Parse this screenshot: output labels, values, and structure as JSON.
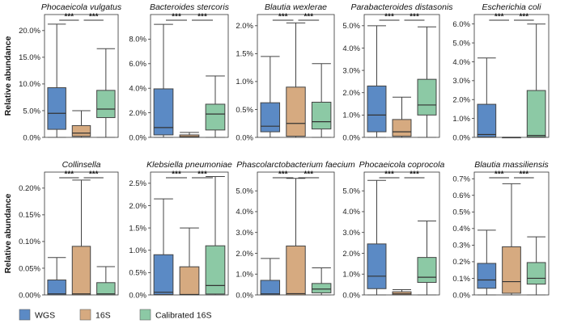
{
  "legend": [
    {
      "label": "WGS",
      "color": "#5b8ac5"
    },
    {
      "label": "16S",
      "color": "#d6aa80"
    },
    {
      "label": "Calibrated 16S",
      "color": "#8cc9a5"
    }
  ],
  "chart_data": [
    {
      "type": "box",
      "title": "Phocaeicola vulgatus",
      "ylabel": "Relative abundance",
      "unit": "%",
      "ylim": [
        0,
        23
      ],
      "ticks": [
        0,
        5,
        10,
        15,
        20
      ],
      "tick_labels": [
        "0.0%",
        "5.0%",
        "10.0%",
        "15.0%",
        "20.0%"
      ],
      "categories": [
        "WGS",
        "16S",
        "Calibrated 16S"
      ],
      "boxes": [
        {
          "min": 0,
          "q1": 1.5,
          "median": 4.5,
          "q3": 9.3,
          "max": 21.2
        },
        {
          "min": 0,
          "q1": 0.2,
          "median": 0.8,
          "q3": 2.2,
          "max": 5.0
        },
        {
          "min": 0,
          "q1": 3.7,
          "median": 5.3,
          "q3": 8.8,
          "max": 16.6
        }
      ],
      "significance": [
        "***",
        "***"
      ]
    },
    {
      "type": "box",
      "title": "Bacteroides stercoris",
      "ylabel": "",
      "unit": "%",
      "ylim": [
        0,
        10
      ],
      "ticks": [
        0,
        2,
        4,
        6,
        8
      ],
      "tick_labels": [
        "0.0%",
        "2.0%",
        "4.0%",
        "6.0%",
        "8.0%"
      ],
      "categories": [
        "WGS",
        "16S",
        "Calibrated 16S"
      ],
      "boxes": [
        {
          "min": 0,
          "q1": 0.2,
          "median": 0.8,
          "q3": 3.95,
          "max": 9.2
        },
        {
          "min": 0,
          "q1": 0,
          "median": 0.05,
          "q3": 0.2,
          "max": 0.4
        },
        {
          "min": 0,
          "q1": 0.6,
          "median": 1.9,
          "q3": 2.7,
          "max": 5.0
        }
      ],
      "significance": [
        "***",
        "***"
      ]
    },
    {
      "type": "box",
      "title": "Blautia wexlerae",
      "ylabel": "",
      "unit": "%",
      "ylim": [
        0,
        2.2
      ],
      "ticks": [
        0,
        0.5,
        1.0,
        1.5,
        2.0
      ],
      "tick_labels": [
        "0.0%",
        "0.5%",
        "1.0%",
        "1.5%",
        "2.0%"
      ],
      "categories": [
        "WGS",
        "16S",
        "Calibrated 16S"
      ],
      "boxes": [
        {
          "min": 0,
          "q1": 0.1,
          "median": 0.2,
          "q3": 0.62,
          "max": 1.45
        },
        {
          "min": 0,
          "q1": 0.02,
          "median": 0.25,
          "q3": 0.9,
          "max": 2.05
        },
        {
          "min": 0,
          "q1": 0.15,
          "median": 0.28,
          "q3": 0.63,
          "max": 1.32
        }
      ],
      "significance": [
        "***",
        "***"
      ]
    },
    {
      "type": "box",
      "title": "Parabacteroides distasonis",
      "ylabel": "",
      "unit": "%",
      "ylim": [
        0,
        5.5
      ],
      "ticks": [
        0,
        1,
        2,
        3,
        4,
        5
      ],
      "tick_labels": [
        "0.0%",
        "1.0%",
        "2.0%",
        "3.0%",
        "4.0%",
        "5.0%"
      ],
      "categories": [
        "WGS",
        "16S",
        "Calibrated 16S"
      ],
      "boxes": [
        {
          "min": 0,
          "q1": 0.25,
          "median": 1.0,
          "q3": 2.3,
          "max": 5.0
        },
        {
          "min": 0,
          "q1": 0.05,
          "median": 0.25,
          "q3": 0.8,
          "max": 1.8
        },
        {
          "min": 0,
          "q1": 1.0,
          "median": 1.45,
          "q3": 2.6,
          "max": 4.95
        }
      ],
      "significance": [
        "***",
        "***"
      ]
    },
    {
      "type": "box",
      "title": "Escherichia coli",
      "ylabel": "",
      "unit": "%",
      "ylim": [
        0,
        6.5
      ],
      "ticks": [
        0,
        1,
        2,
        3,
        4,
        5,
        6
      ],
      "tick_labels": [
        "0.0%",
        "1.0%",
        "2.0%",
        "3.0%",
        "4.0%",
        "5.0%",
        "6.0%"
      ],
      "categories": [
        "WGS",
        "16S",
        "Calibrated 16S"
      ],
      "boxes": [
        {
          "min": 0,
          "q1": 0.02,
          "median": 0.15,
          "q3": 1.75,
          "max": 4.2
        },
        {
          "min": 0,
          "q1": 0,
          "median": 0,
          "q3": 0,
          "max": 0
        },
        {
          "min": 0,
          "q1": 0.02,
          "median": 0.1,
          "q3": 2.48,
          "max": 6.0
        }
      ],
      "significance": [
        "***",
        "***"
      ]
    },
    {
      "type": "box",
      "title": "Collinsella",
      "ylabel": "Relative abundance",
      "unit": "%",
      "ylim": [
        0,
        0.23
      ],
      "ticks": [
        0,
        0.05,
        0.1,
        0.15,
        0.2
      ],
      "tick_labels": [
        "0.00%",
        "0.05%",
        "0.10%",
        "0.15%",
        "0.20%"
      ],
      "categories": [
        "WGS",
        "16S",
        "Calibrated 16S"
      ],
      "boxes": [
        {
          "min": 0,
          "q1": 0,
          "median": 0.002,
          "q3": 0.028,
          "max": 0.07
        },
        {
          "min": 0,
          "q1": 0,
          "median": 0.002,
          "q3": 0.091,
          "max": 0.215
        },
        {
          "min": 0,
          "q1": 0,
          "median": 0.002,
          "q3": 0.023,
          "max": 0.053
        }
      ],
      "significance": [
        "***",
        "***"
      ]
    },
    {
      "type": "box",
      "title": "Klebsiella pneumoniae",
      "ylabel": "",
      "unit": "%",
      "ylim": [
        0,
        2.75
      ],
      "ticks": [
        0,
        0.5,
        1.0,
        1.5,
        2.0,
        2.5
      ],
      "tick_labels": [
        "0.0%",
        "0.5%",
        "1.0%",
        "1.5%",
        "2.0%",
        "2.5%"
      ],
      "categories": [
        "WGS",
        "16S",
        "Calibrated 16S"
      ],
      "boxes": [
        {
          "min": 0,
          "q1": 0.01,
          "median": 0.06,
          "q3": 0.9,
          "max": 2.15
        },
        {
          "min": 0,
          "q1": 0,
          "median": 0.01,
          "q3": 0.63,
          "max": 1.5
        },
        {
          "min": 0,
          "q1": 0.02,
          "median": 0.21,
          "q3": 1.1,
          "max": 2.65
        }
      ],
      "significance": [
        "***",
        "***"
      ]
    },
    {
      "type": "box",
      "title": "Phascolarctobacterium faecium",
      "ylabel": "",
      "unit": "%",
      "ylim": [
        0,
        5.9
      ],
      "ticks": [
        0,
        1,
        2,
        3,
        4,
        5
      ],
      "tick_labels": [
        "0.0%",
        "1.0%",
        "2.0%",
        "3.0%",
        "4.0%",
        "5.0%"
      ],
      "categories": [
        "WGS",
        "16S",
        "Calibrated 16S"
      ],
      "boxes": [
        {
          "min": 0,
          "q1": 0,
          "median": 0.05,
          "q3": 0.7,
          "max": 1.75
        },
        {
          "min": 0,
          "q1": 0,
          "median": 0.06,
          "q3": 2.35,
          "max": 5.6
        },
        {
          "min": 0,
          "q1": 0.1,
          "median": 0.28,
          "q3": 0.55,
          "max": 1.3
        }
      ],
      "significance": [
        "***",
        "***"
      ]
    },
    {
      "type": "box",
      "title": "Phocaeicola coprocola",
      "ylabel": "",
      "unit": "%",
      "ylim": [
        0,
        5.9
      ],
      "ticks": [
        0,
        1,
        2,
        3,
        4,
        5
      ],
      "tick_labels": [
        "0.0%",
        "1.0%",
        "2.0%",
        "3.0%",
        "4.0%",
        "5.0%"
      ],
      "categories": [
        "WGS",
        "16S",
        "Calibrated 16S"
      ],
      "boxes": [
        {
          "min": 0,
          "q1": 0.3,
          "median": 0.9,
          "q3": 2.45,
          "max": 5.5
        },
        {
          "min": 0,
          "q1": 0,
          "median": 0.05,
          "q3": 0.15,
          "max": 0.25
        },
        {
          "min": 0,
          "q1": 0.6,
          "median": 0.85,
          "q3": 1.8,
          "max": 3.55
        }
      ],
      "significance": [
        "***",
        "***"
      ]
    },
    {
      "type": "box",
      "title": "Blautia massiliensis",
      "ylabel": "",
      "unit": "%",
      "ylim": [
        0,
        0.74
      ],
      "ticks": [
        0,
        0.1,
        0.2,
        0.3,
        0.4,
        0.5,
        0.6,
        0.7
      ],
      "tick_labels": [
        "0.0%",
        "0.1%",
        "0.2%",
        "0.3%",
        "0.4%",
        "0.5%",
        "0.6%",
        "0.7%"
      ],
      "categories": [
        "WGS",
        "16S",
        "Calibrated 16S"
      ],
      "boxes": [
        {
          "min": 0,
          "q1": 0.04,
          "median": 0.09,
          "q3": 0.19,
          "max": 0.39
        },
        {
          "min": 0,
          "q1": 0.01,
          "median": 0.08,
          "q3": 0.29,
          "max": 0.67
        },
        {
          "min": 0,
          "q1": 0.065,
          "median": 0.1,
          "q3": 0.195,
          "max": 0.35
        }
      ],
      "significance": [
        "***",
        "***"
      ]
    }
  ]
}
